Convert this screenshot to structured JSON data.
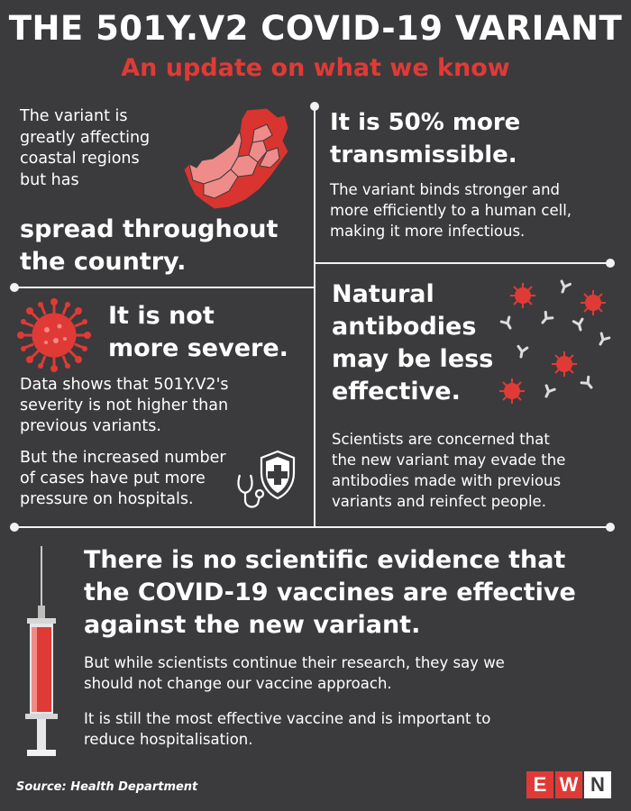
{
  "title": "THE 501Y.V2 COVID-19 VARIANT",
  "subtitle": "An update on what we know",
  "spread": {
    "intro": [
      "The variant is",
      "greatly affecting",
      "coastal regions",
      "but has"
    ],
    "headline": [
      "spread throughout",
      "the country."
    ]
  },
  "transmissible": {
    "headline": [
      "It is 50% more",
      "transmissible."
    ],
    "body": [
      "The variant binds stronger and",
      "more efficiently to a human cell,",
      "making it more infectious."
    ]
  },
  "severity": {
    "headline": [
      "It is not",
      "more severe."
    ],
    "body": [
      "Data shows that 501Y.V2's",
      "severity is not higher than",
      "previous variants."
    ],
    "body2": [
      "But the increased number",
      "of cases have put more",
      "pressure on hospitals."
    ]
  },
  "antibodies": {
    "headline": [
      "Natural",
      "antibodies",
      "may be less",
      "effective."
    ],
    "body": [
      "Scientists are concerned that",
      "the new variant may evade the",
      "antibodies made with previous",
      "variants and reinfect people."
    ]
  },
  "vaccine": {
    "headline": [
      "There is no scientific evidence that",
      "the COVID-19 vaccines are effective",
      "against the new variant."
    ],
    "body": [
      "But while scientists continue their research, they say we",
      "should not change our vaccine approach."
    ],
    "body2": [
      "It is still the most effective vaccine and is important to",
      "reduce hospitalisation."
    ]
  },
  "source": "Source: Health Department",
  "logo": {
    "e": "E",
    "w": "W",
    "n": "N"
  },
  "colors": {
    "background": "#3b3b3d",
    "accent_red": "#e03a36",
    "map_light": "#ef8c8a",
    "text": "#ffffff"
  },
  "icons": [
    "south-africa-map-icon",
    "virus-icon",
    "shield-stethoscope-icon",
    "virus-antibody-icon",
    "syringe-icon"
  ]
}
